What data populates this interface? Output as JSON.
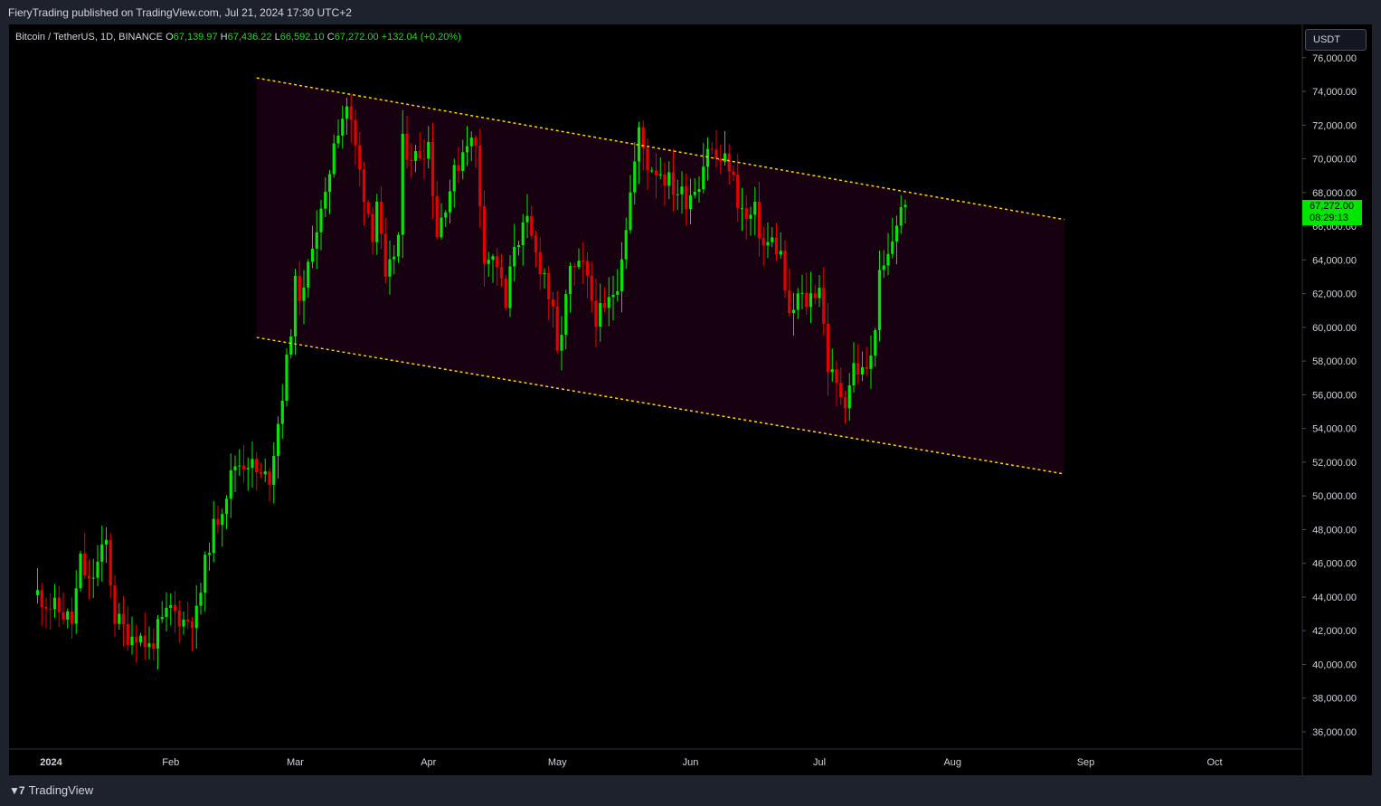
{
  "header": {
    "published_text": "FieryTrading published on TradingView.com, Jul 21, 2024 17:30 UTC+2"
  },
  "legend": {
    "symbol": "Bitcoin / TetherUS, 1D, BINANCE",
    "o_label": "O",
    "o_value": "67,139.97",
    "h_label": "H",
    "h_value": "67,436.22",
    "l_label": "L",
    "l_value": "66,592.10",
    "c_label": "C",
    "c_value": "67,272.00",
    "change": "+132.04 (+0.20%)"
  },
  "price_scale": {
    "currency": "USDT",
    "last_price": "67,272.00",
    "countdown": "08:29:13"
  },
  "footer": {
    "brand": "TradingView"
  },
  "colors": {
    "up": "#00e600",
    "down": "#e50000",
    "channel_line": "#ffd400",
    "channel_fill": "#17000f",
    "background": "#000000",
    "frame": "#1e222d",
    "text": "#d1d4dc"
  },
  "chart_data": {
    "type": "candlestick",
    "title": "",
    "xlabel": "",
    "ylabel": "",
    "ylim": [
      35000,
      77500
    ],
    "x_range": [
      "2024-01-01",
      "2024-10-31"
    ],
    "y_ticks": [
      "76,000.00",
      "74,000.00",
      "72,000.00",
      "70,000.00",
      "68,000.00",
      "66,000.00",
      "64,000.00",
      "62,000.00",
      "60,000.00",
      "58,000.00",
      "56,000.00",
      "54,000.00",
      "52,000.00",
      "50,000.00",
      "48,000.00",
      "46,000.00",
      "44,000.00",
      "42,000.00",
      "40,000.00",
      "38,000.00",
      "36,000.00"
    ],
    "x_ticks": [
      {
        "date": "2024-01-01",
        "label": "2024"
      },
      {
        "date": "2024-02-01",
        "label": "Feb"
      },
      {
        "date": "2024-03-01",
        "label": "Mar"
      },
      {
        "date": "2024-04-01",
        "label": "Apr"
      },
      {
        "date": "2024-05-01",
        "label": "May"
      },
      {
        "date": "2024-06-01",
        "label": "Jun"
      },
      {
        "date": "2024-07-01",
        "label": "Jul"
      },
      {
        "date": "2024-08-01",
        "label": "Aug"
      },
      {
        "date": "2024-09-01",
        "label": "Sep"
      },
      {
        "date": "2024-10-01",
        "label": "Oct"
      }
    ],
    "grid": false,
    "channel": {
      "upper": [
        [
          "2024-02-21",
          74800
        ],
        [
          "2024-08-27",
          66400
        ]
      ],
      "lower": [
        [
          "2024-02-21",
          59400
        ],
        [
          "2024-08-27",
          51300
        ]
      ]
    },
    "daily_close": [
      [
        "2024-01-01",
        44200
      ],
      [
        "2024-01-04",
        43500
      ],
      [
        "2024-01-07",
        43000
      ],
      [
        "2024-01-09",
        42500
      ],
      [
        "2024-01-11",
        46100
      ],
      [
        "2024-01-13",
        44700
      ],
      [
        "2024-01-17",
        47200
      ],
      [
        "2024-01-19",
        42800
      ],
      [
        "2024-01-22",
        41800
      ],
      [
        "2024-01-24",
        41900
      ],
      [
        "2024-01-27",
        41000
      ],
      [
        "2024-01-29",
        42000
      ],
      [
        "2024-02-01",
        43300
      ],
      [
        "2024-02-04",
        42600
      ],
      [
        "2024-02-07",
        42900
      ],
      [
        "2024-02-10",
        47300
      ],
      [
        "2024-02-13",
        49500
      ],
      [
        "2024-02-16",
        51900
      ],
      [
        "2024-02-19",
        52100
      ],
      [
        "2024-02-22",
        51000
      ],
      [
        "2024-02-24",
        51200
      ],
      [
        "2024-02-26",
        54400
      ],
      [
        "2024-02-28",
        57800
      ],
      [
        "2024-03-01",
        62400
      ],
      [
        "2024-03-03",
        61800
      ],
      [
        "2024-03-05",
        65300
      ],
      [
        "2024-03-08",
        67400
      ],
      [
        "2024-03-10",
        71300
      ],
      [
        "2024-03-13",
        73200
      ],
      [
        "2024-03-14",
        72000
      ],
      [
        "2024-03-16",
        69200
      ],
      [
        "2024-03-19",
        65700
      ],
      [
        "2024-03-20",
        67600
      ],
      [
        "2024-03-22",
        62400
      ],
      [
        "2024-03-25",
        65400
      ],
      [
        "2024-03-26",
        70800
      ],
      [
        "2024-03-29",
        70100
      ],
      [
        "2024-04-01",
        71000
      ],
      [
        "2024-04-03",
        65600
      ],
      [
        "2024-04-05",
        67500
      ],
      [
        "2024-04-08",
        69800
      ],
      [
        "2024-04-10",
        71300
      ],
      [
        "2024-04-12",
        70600
      ],
      [
        "2024-04-14",
        64400
      ],
      [
        "2024-04-17",
        63800
      ],
      [
        "2024-04-19",
        61100
      ],
      [
        "2024-04-21",
        65100
      ],
      [
        "2024-04-24",
        66000
      ],
      [
        "2024-04-26",
        64300
      ],
      [
        "2024-04-28",
        63200
      ],
      [
        "2024-04-30",
        60600
      ],
      [
        "2024-05-01",
        58200
      ],
      [
        "2024-05-04",
        63200
      ],
      [
        "2024-05-07",
        63500
      ],
      [
        "2024-05-10",
        60700
      ],
      [
        "2024-05-12",
        60800
      ],
      [
        "2024-05-15",
        62800
      ],
      [
        "2024-05-17",
        66200
      ],
      [
        "2024-05-20",
        71500
      ],
      [
        "2024-05-22",
        69700
      ],
      [
        "2024-05-25",
        69300
      ],
      [
        "2024-05-28",
        68300
      ],
      [
        "2024-05-31",
        67700
      ],
      [
        "2024-06-03",
        68800
      ],
      [
        "2024-06-05",
        70800
      ],
      [
        "2024-06-07",
        70000
      ],
      [
        "2024-06-10",
        69700
      ],
      [
        "2024-06-12",
        67600
      ],
      [
        "2024-06-14",
        66300
      ],
      [
        "2024-06-16",
        66800
      ],
      [
        "2024-06-18",
        64800
      ],
      [
        "2024-06-20",
        65100
      ],
      [
        "2024-06-22",
        64300
      ],
      [
        "2024-06-24",
        60300
      ],
      [
        "2024-06-26",
        61800
      ],
      [
        "2024-06-28",
        61500
      ],
      [
        "2024-07-01",
        62600
      ],
      [
        "2024-07-03",
        57700
      ],
      [
        "2024-07-05",
        56400
      ],
      [
        "2024-07-07",
        55800
      ],
      [
        "2024-07-09",
        57700
      ],
      [
        "2024-07-11",
        57300
      ],
      [
        "2024-07-13",
        58000
      ],
      [
        "2024-07-15",
        62800
      ],
      [
        "2024-07-17",
        64100
      ],
      [
        "2024-07-19",
        66300
      ],
      [
        "2024-07-21",
        67272
      ]
    ]
  }
}
